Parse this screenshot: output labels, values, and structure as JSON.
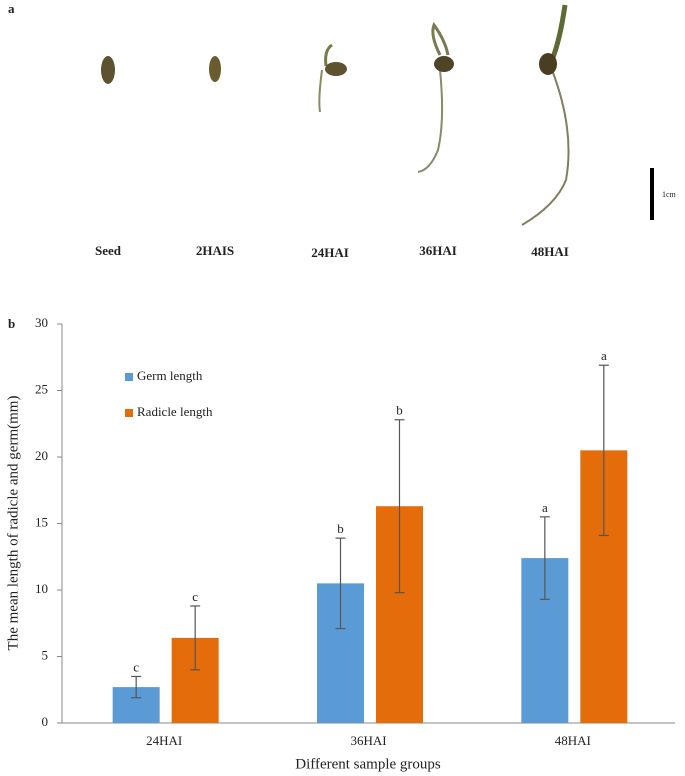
{
  "panel_a": {
    "label": "a",
    "stages": [
      "Seed",
      "2HAIS",
      "24HAI",
      "36HAI",
      "48HAI"
    ],
    "scale_label": "1cm"
  },
  "chart_data": {
    "type": "bar",
    "panel_label": "b",
    "x_label": "Different sample groups",
    "y_label": "The mean length of radicle and germ(mm)",
    "categories": [
      "24HAI",
      "36HAI",
      "48HAI"
    ],
    "series": [
      {
        "name": "Germ length",
        "color": "#5b9bd5",
        "values": [
          2.7,
          10.5,
          12.4
        ],
        "errors": [
          0.8,
          3.4,
          3.1
        ],
        "letters": [
          "c",
          "b",
          "a"
        ]
      },
      {
        "name": "Radicle length",
        "color": "#e46c0a",
        "values": [
          6.4,
          16.3,
          20.5
        ],
        "errors": [
          2.4,
          6.5,
          6.4
        ],
        "letters": [
          "c",
          "b",
          "a"
        ]
      }
    ],
    "ylim": [
      0,
      30
    ],
    "yticks": [
      0,
      5,
      10,
      15,
      20,
      25,
      30
    ],
    "legend": "upper-left"
  }
}
